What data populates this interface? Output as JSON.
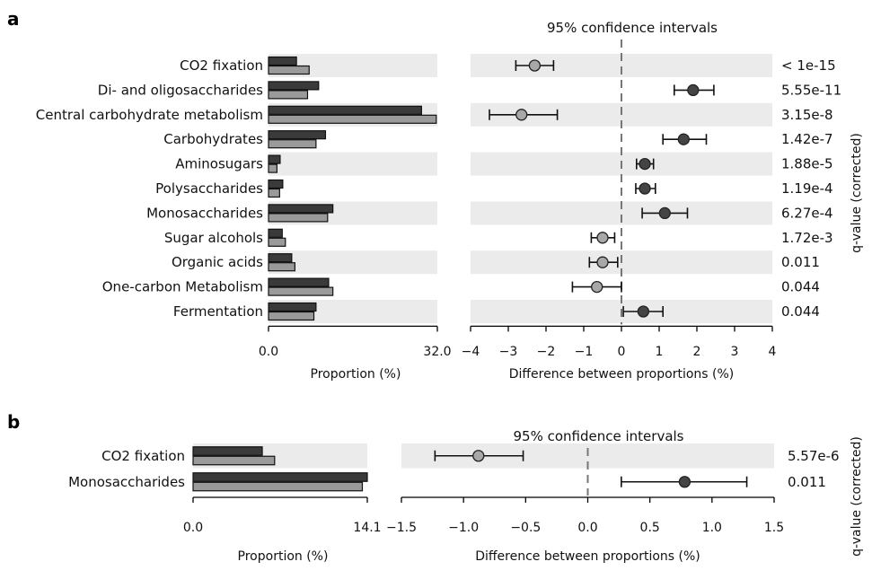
{
  "figure": {
    "panels": [
      "a",
      "b"
    ],
    "colors": {
      "group1": "#3a3a3a",
      "group2": "#9a9a9a",
      "stripe": "#ebebeb",
      "axis": "#000000",
      "zero_line": "#777777"
    }
  },
  "chart_data": [
    {
      "panel": "a",
      "type": "bar",
      "categories": [
        "CO2 fixation",
        "Di- and oligosaccharides",
        "Central carbohydrate metabolism",
        "Carbohydrates",
        "Aminosugars",
        "Polysaccharides",
        "Monosaccharides",
        "Sugar alcohols",
        "Organic acids",
        "One-carbon Metabolism",
        "Fermentation"
      ],
      "series": [
        {
          "values": [
            5.3,
            9.5,
            29.0,
            10.8,
            2.2,
            2.7,
            12.2,
            2.6,
            4.4,
            11.4,
            9.0
          ]
        },
        {
          "values": [
            7.7,
            7.4,
            31.8,
            9.0,
            1.6,
            2.1,
            11.2,
            3.2,
            5.0,
            12.2,
            8.6
          ]
        }
      ],
      "xlabel": "Proportion (%)",
      "xlim": [
        0,
        32.0
      ],
      "xticks": [
        "0.0",
        "32.0"
      ],
      "ci": {
        "type": "scatter",
        "title": "95% confidence intervals",
        "xlabel": "Difference between proportions (%)",
        "xlim": [
          -4,
          4
        ],
        "xticks": [
          "−4",
          "−3",
          "−2",
          "−1",
          "0",
          "1",
          "2",
          "3",
          "4"
        ],
        "points": [
          {
            "mean": -2.3,
            "low": -2.8,
            "high": -1.8,
            "group": 2
          },
          {
            "mean": 1.9,
            "low": 1.4,
            "high": 2.45,
            "group": 1
          },
          {
            "mean": -2.65,
            "low": -3.5,
            "high": -1.7,
            "group": 2
          },
          {
            "mean": 1.65,
            "low": 1.1,
            "high": 2.25,
            "group": 1
          },
          {
            "mean": 0.62,
            "low": 0.4,
            "high": 0.85,
            "group": 1
          },
          {
            "mean": 0.62,
            "low": 0.38,
            "high": 0.9,
            "group": 1
          },
          {
            "mean": 1.15,
            "low": 0.55,
            "high": 1.75,
            "group": 1
          },
          {
            "mean": -0.5,
            "low": -0.8,
            "high": -0.18,
            "group": 2
          },
          {
            "mean": -0.5,
            "low": -0.85,
            "high": -0.1,
            "group": 2
          },
          {
            "mean": -0.65,
            "low": -1.3,
            "high": 0.0,
            "group": 2
          },
          {
            "mean": 0.58,
            "low": 0.05,
            "high": 1.1,
            "group": 1
          }
        ]
      },
      "qvalues": {
        "label": "q-value (corrected)",
        "values": [
          "< 1e-15",
          "5.55e-11",
          "3.15e-8",
          "1.42e-7",
          "1.88e-5",
          "1.19e-4",
          "6.27e-4",
          "1.72e-3",
          "0.011",
          "0.044",
          "0.044"
        ]
      }
    },
    {
      "panel": "b",
      "type": "bar",
      "categories": [
        "CO2 fixation",
        "Monosaccharides"
      ],
      "series": [
        {
          "values": [
            5.6,
            14.1
          ]
        },
        {
          "values": [
            6.6,
            13.7
          ]
        }
      ],
      "xlabel": "Proportion (%)",
      "xlim": [
        0,
        14.1
      ],
      "xticks": [
        "0.0",
        "14.1"
      ],
      "ci": {
        "type": "scatter",
        "title": "95% confidence intervals",
        "xlabel": "Difference between proportions (%)",
        "xlim": [
          -1.5,
          1.5
        ],
        "xticks": [
          "−1.5",
          "−1.0",
          "−0.5",
          "0.0",
          "0.5",
          "1.0",
          "1.5"
        ],
        "points": [
          {
            "mean": -0.88,
            "low": -1.23,
            "high": -0.52,
            "group": 2
          },
          {
            "mean": 0.78,
            "low": 0.27,
            "high": 1.28,
            "group": 1
          }
        ]
      },
      "qvalues": {
        "label": "q-value (corrected)",
        "values": [
          "5.57e-6",
          "0.011"
        ]
      }
    }
  ]
}
